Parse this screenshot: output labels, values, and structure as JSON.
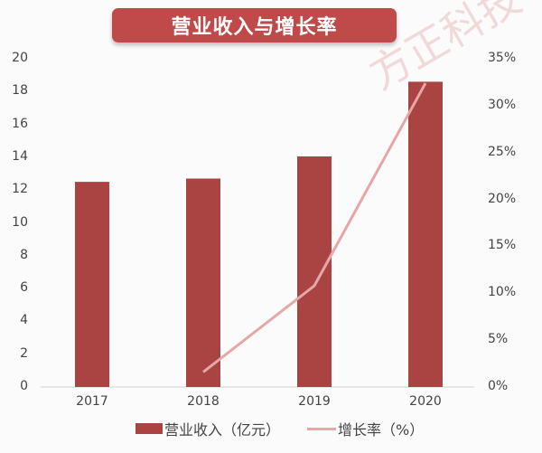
{
  "title": "营业收入与增长率",
  "watermark": "方正科技·",
  "colors": {
    "bar": "#a94443",
    "line": "#e6a7a6",
    "title_bg": "#c0494a"
  },
  "left_axis": {
    "ticks": [
      "0",
      "2",
      "4",
      "6",
      "8",
      "10",
      "12",
      "14",
      "16",
      "18",
      "20"
    ]
  },
  "right_axis": {
    "ticks": [
      "0%",
      "5%",
      "10%",
      "15%",
      "20%",
      "25%",
      "30%",
      "35%"
    ]
  },
  "x_axis": {
    "ticks": [
      "2017",
      "2018",
      "2019",
      "2020"
    ]
  },
  "legend": {
    "bar_label": "营业收入（亿元）",
    "line_label": "增长率（%）"
  },
  "chart_data": {
    "type": "bar",
    "title": "营业收入与增长率",
    "categories": [
      "2017",
      "2018",
      "2019",
      "2020"
    ],
    "series": [
      {
        "name": "营业收入（亿元）",
        "type": "bar",
        "axis": "left",
        "values": [
          12.5,
          12.7,
          14.05,
          18.6
        ]
      },
      {
        "name": "增长率（%）",
        "type": "line",
        "axis": "right",
        "values": [
          null,
          1.6,
          10.8,
          32.4
        ]
      }
    ],
    "xlabel": "",
    "ylabel": "",
    "ylim": [
      0,
      20
    ],
    "y2lim": [
      0,
      35
    ],
    "grid": false,
    "legend_position": "bottom"
  }
}
